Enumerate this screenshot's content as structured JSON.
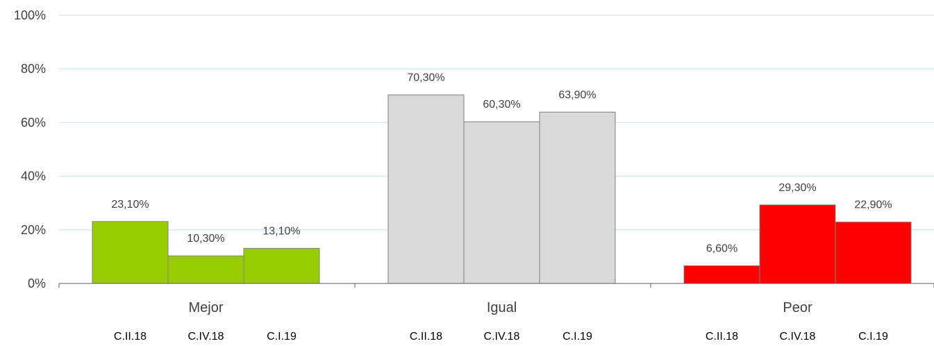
{
  "chart_data": {
    "type": "bar",
    "title": "",
    "xlabel": "",
    "ylabel": "",
    "ylim": [
      0,
      100
    ],
    "yticks": [
      0,
      20,
      40,
      60,
      80,
      100
    ],
    "ytick_labels": [
      "0%",
      "20%",
      "40%",
      "60%",
      "80%",
      "100%"
    ],
    "grid": true,
    "legend": "none",
    "categories": [
      "Mejor",
      "Igual",
      "Peor"
    ],
    "bar_labels": [
      "C.II.18",
      "C.IV.18",
      "C.I.19"
    ],
    "colors": [
      "#99CC00",
      "#D9D9D9",
      "#FF0000"
    ],
    "values": [
      [
        23.1,
        10.3,
        13.1
      ],
      [
        70.3,
        60.3,
        63.9
      ],
      [
        6.6,
        29.3,
        22.9
      ]
    ],
    "data_labels": [
      [
        "23,10%",
        "10,30%",
        "13,10%"
      ],
      [
        "70,30%",
        "60,30%",
        "63,90%"
      ],
      [
        "6,60%",
        "29,30%",
        "22,90%"
      ]
    ]
  }
}
